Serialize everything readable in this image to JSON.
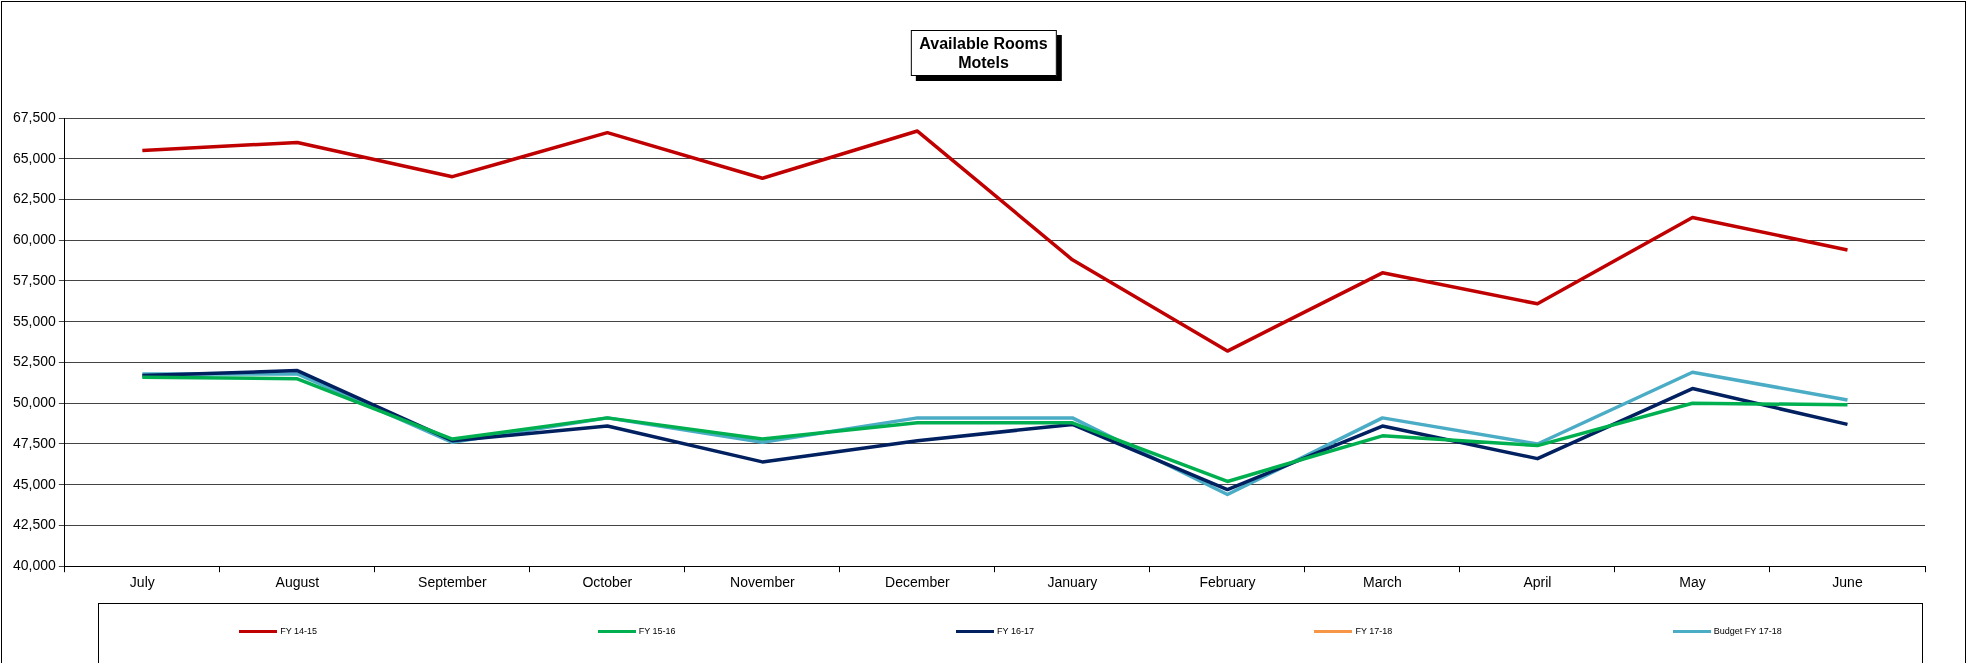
{
  "chart_data": {
    "type": "line",
    "title": "Available Rooms\nMotels",
    "categories": [
      "July",
      "August",
      "September",
      "October",
      "November",
      "December",
      "January",
      "February",
      "March",
      "April",
      "May",
      "June"
    ],
    "series": [
      {
        "name": "FY 14-15",
        "color": "#c00000",
        "values": [
          65500,
          66000,
          63900,
          66600,
          63800,
          66700,
          58800,
          53200,
          58000,
          56100,
          61400,
          59400
        ]
      },
      {
        "name": "FY 15-16",
        "color": "#00b050",
        "values": [
          51600,
          51500,
          47800,
          49100,
          47800,
          48800,
          48800,
          45200,
          48000,
          47400,
          50000,
          49900
        ]
      },
      {
        "name": "FY 16-17",
        "color": "#002060",
        "values": [
          51700,
          52000,
          47700,
          48600,
          46400,
          47700,
          48700,
          44700,
          48600,
          46600,
          50900,
          48700
        ]
      },
      {
        "name": "FY 17-18",
        "color": "#f79646",
        "values": [
          null,
          null,
          null,
          null,
          null,
          null,
          null,
          null,
          null,
          null,
          null,
          null
        ]
      },
      {
        "name": "Budget FY 17-18",
        "color": "#4bacc6",
        "values": [
          51800,
          51800,
          47600,
          49100,
          47600,
          49100,
          49100,
          44400,
          49100,
          47500,
          51900,
          50200
        ]
      }
    ],
    "ylim": [
      40000,
      67500
    ],
    "yticks": [
      {
        "value": 40000,
        "label": "40,000"
      },
      {
        "value": 42500,
        "label": "42,500"
      },
      {
        "value": 45000,
        "label": "45,000"
      },
      {
        "value": 47500,
        "label": "47,500"
      },
      {
        "value": 50000,
        "label": "50,000"
      },
      {
        "value": 52500,
        "label": "52,500"
      },
      {
        "value": 55000,
        "label": "55,000"
      },
      {
        "value": 57500,
        "label": "57,500"
      },
      {
        "value": 60000,
        "label": "60,000"
      },
      {
        "value": 62500,
        "label": "62,500"
      },
      {
        "value": 65000,
        "label": "65,000"
      },
      {
        "value": 67500,
        "label": "67,500"
      }
    ],
    "grid": "y",
    "legend": "bottom",
    "marker": "none",
    "line_style": "solid"
  }
}
